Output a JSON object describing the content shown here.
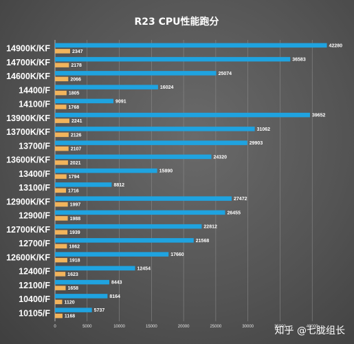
{
  "chart_data": {
    "type": "bar",
    "orientation": "horizontal",
    "title": "R23 CPU性能跑分",
    "categories": [
      "14900K/KF",
      "14700K/KF",
      "14600K/KF",
      "14400/F",
      "14100/F",
      "13900K/KF",
      "13700K/KF",
      "13700/F",
      "13600K/KF",
      "13400/F",
      "13100/F",
      "12900K/KF",
      "12900/F",
      "12700K/KF",
      "12700/F",
      "12600K/KF",
      "12400/F",
      "12100/F",
      "10400/F",
      "10105/F"
    ],
    "series": [
      {
        "color": "#1fa3e0",
        "values": [
          42280,
          36583,
          25074,
          16024,
          9091,
          39652,
          31062,
          29903,
          24320,
          15890,
          8812,
          27472,
          26455,
          22812,
          21568,
          17660,
          12454,
          8443,
          8164,
          5737
        ]
      },
      {
        "color": "#f2b45c",
        "values": [
          2347,
          2178,
          2066,
          1805,
          1768,
          2241,
          2126,
          2107,
          2021,
          1794,
          1716,
          1997,
          1988,
          1939,
          1862,
          1918,
          1623,
          1658,
          1120,
          1168
        ]
      }
    ],
    "xticks": [
      0,
      5000,
      10000,
      15000,
      20000,
      25000,
      30000,
      35000,
      40000
    ],
    "xlim": [
      0,
      45000
    ],
    "grid": true,
    "legend": "none"
  },
  "watermark": "知乎 @七胧组长",
  "colors": {
    "title": "#ffffff",
    "label": "#ffffff",
    "tick": "#e6e6e6",
    "grid": "#8a8a8a"
  }
}
